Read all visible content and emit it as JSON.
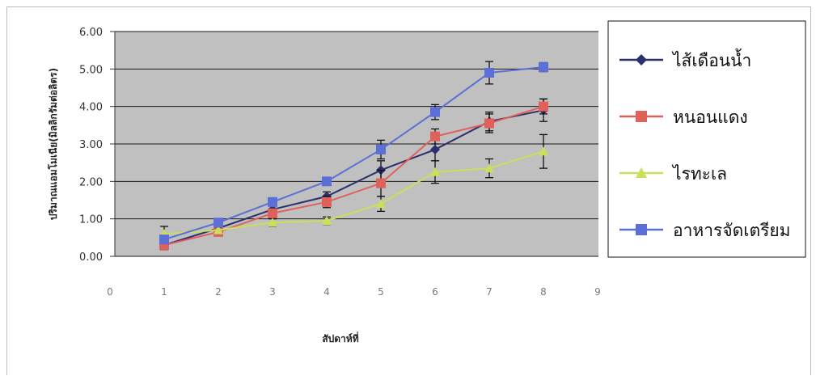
{
  "chart_data": {
    "type": "line",
    "title": "",
    "xlabel": "สัปดาห์ที่",
    "ylabel": "ปริมาณแอมโมเนีย(มิลลิกรัมต่อลิตร)",
    "x": [
      1,
      2,
      3,
      4,
      5,
      6,
      7,
      8
    ],
    "xlim": [
      0,
      9
    ],
    "xticks": [
      "0",
      "1",
      "2",
      "3",
      "4",
      "5",
      "6",
      "7",
      "8",
      "9"
    ],
    "ylim": [
      0,
      6
    ],
    "yticks": [
      "0.00",
      "1.00",
      "2.00",
      "3.00",
      "4.00",
      "5.00",
      "6.00"
    ],
    "grid": true,
    "legend_position": "right",
    "plot_background": "#c0c0c0",
    "series": [
      {
        "name": "ไส้เดือนน้ำ",
        "color": "#2b2f6e",
        "marker": "diamond",
        "values": [
          0.3,
          0.75,
          1.25,
          1.6,
          2.3,
          2.85,
          3.6,
          3.9
        ],
        "errors": [
          0.12,
          0.08,
          0.1,
          0.12,
          0.25,
          0.3,
          0.25,
          0.3
        ]
      },
      {
        "name": "หนอนแดง",
        "color": "#e0605c",
        "marker": "square",
        "values": [
          0.3,
          0.65,
          1.15,
          1.45,
          1.95,
          3.2,
          3.55,
          4.0
        ],
        "errors": [
          0.1,
          0.08,
          0.12,
          0.15,
          0.35,
          0.2,
          0.25,
          0.2
        ]
      },
      {
        "name": "ไรทะเล",
        "color": "#c8e05a",
        "marker": "triangle",
        "values": [
          0.6,
          0.7,
          0.9,
          0.95,
          1.4,
          2.25,
          2.35,
          2.8
        ],
        "errors": [
          0.2,
          0.08,
          0.1,
          0.1,
          0.2,
          0.3,
          0.25,
          0.45
        ]
      },
      {
        "name": "อาหารจัดเตรียม",
        "color": "#5b6fd6",
        "marker": "square",
        "values": [
          0.45,
          0.9,
          1.45,
          2.0,
          2.85,
          3.85,
          4.9,
          5.05
        ],
        "errors": [
          0.1,
          0.08,
          0.1,
          0.1,
          0.25,
          0.2,
          0.3,
          0.12
        ]
      }
    ]
  }
}
